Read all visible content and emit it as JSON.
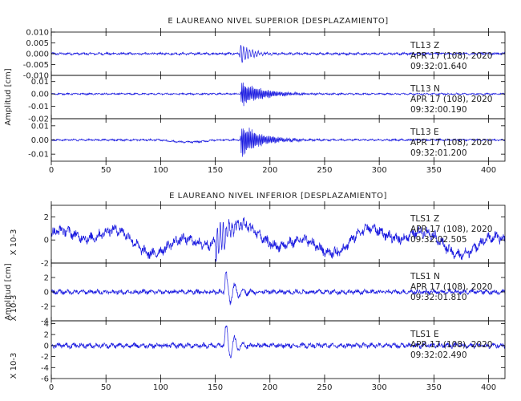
{
  "chart_data": [
    {
      "type": "line",
      "title": "E LAUREANO NIVEL SUPERIOR [DESPLAZAMIENTO]",
      "ylabel": "Amplitud [cm]",
      "xlim": [
        0,
        415
      ],
      "xticks": [
        "0",
        "50",
        "100",
        "150",
        "200",
        "250",
        "300",
        "350",
        "400"
      ],
      "panels": [
        {
          "channel": "TL13   Z",
          "date": "APR 17 (108), 2020",
          "time": "09:32:01.640",
          "ylim": [
            -0.01,
            0.01
          ],
          "yticks": [
            "0.010",
            "0.005",
            "0.000",
            "-0.005",
            "-0.010"
          ],
          "noise": 0.0004,
          "event_start": 172,
          "event_peak": 0.006,
          "event_decay": 10,
          "freq": 3.0,
          "bump": 0
        },
        {
          "channel": "TL13   N",
          "date": "APR 17 (108), 2020",
          "time": "09:32:00.190",
          "ylim": [
            -0.02,
            0.015
          ],
          "yticks": [
            "0.01",
            "0.00",
            "-0.01",
            "-0.02"
          ],
          "noise": 0.0005,
          "event_start": 173,
          "event_peak": 0.012,
          "event_decay": 20,
          "freq": 2.5,
          "bump": 0
        },
        {
          "channel": "TL13   E",
          "date": "APR 17 (108), 2020",
          "time": "09:32:01.200",
          "ylim": [
            -0.015,
            0.015
          ],
          "yticks": [
            "0.01",
            "0.00",
            "-0.01"
          ],
          "noise": 0.0005,
          "event_start": 173,
          "event_peak": 0.014,
          "event_decay": 18,
          "freq": 2.5,
          "bump": -0.0015
        }
      ]
    },
    {
      "type": "line",
      "title": "E LAUREANO NIVEL INFERIOR [DESPLAZAMIENTO]",
      "ylabel": "Amplitud [cm]",
      "xlim": [
        0,
        415
      ],
      "xticks": [
        "0",
        "50",
        "100",
        "150",
        "200",
        "250",
        "300",
        "350",
        "400"
      ],
      "panels": [
        {
          "channel": "TLS1   Z",
          "date": "APR 17 (108), 2020",
          "time": "09:32:02.505",
          "scale_label": "X 10-3",
          "ylim": [
            -2,
            3
          ],
          "yticks": [
            "2",
            "0",
            "-2"
          ],
          "noise": 0.35,
          "event_start": 150,
          "event_peak": 2.2,
          "event_decay": 12,
          "freq": 3.0,
          "bump": 0.6
        },
        {
          "channel": "TLS1   N",
          "date": "APR 17 (108), 2020",
          "time": "09:32:01.810",
          "scale_label": "X 10-3",
          "ylim": [
            -4,
            4
          ],
          "yticks": [
            "2",
            "0",
            "-2",
            "-4"
          ],
          "noise": 0.25,
          "event_start": 158,
          "event_peak": 3.8,
          "event_decay": 8,
          "freq": 3.5,
          "bump": 0
        },
        {
          "channel": "TLS1   E",
          "date": "APR 17 (108), 2020",
          "time": "09:32:02.490",
          "scale_label": "X 10-3",
          "ylim": [
            -6,
            4.5
          ],
          "yticks": [
            "4",
            "2",
            "0",
            "-2",
            "-4",
            "-6"
          ],
          "noise": 0.35,
          "event_start": 158,
          "event_peak": 5.5,
          "event_decay": 8,
          "freq": 3.5,
          "bump": 0
        }
      ]
    }
  ],
  "colors": {
    "trace": "#1a1ae0",
    "axis": "#000000"
  }
}
